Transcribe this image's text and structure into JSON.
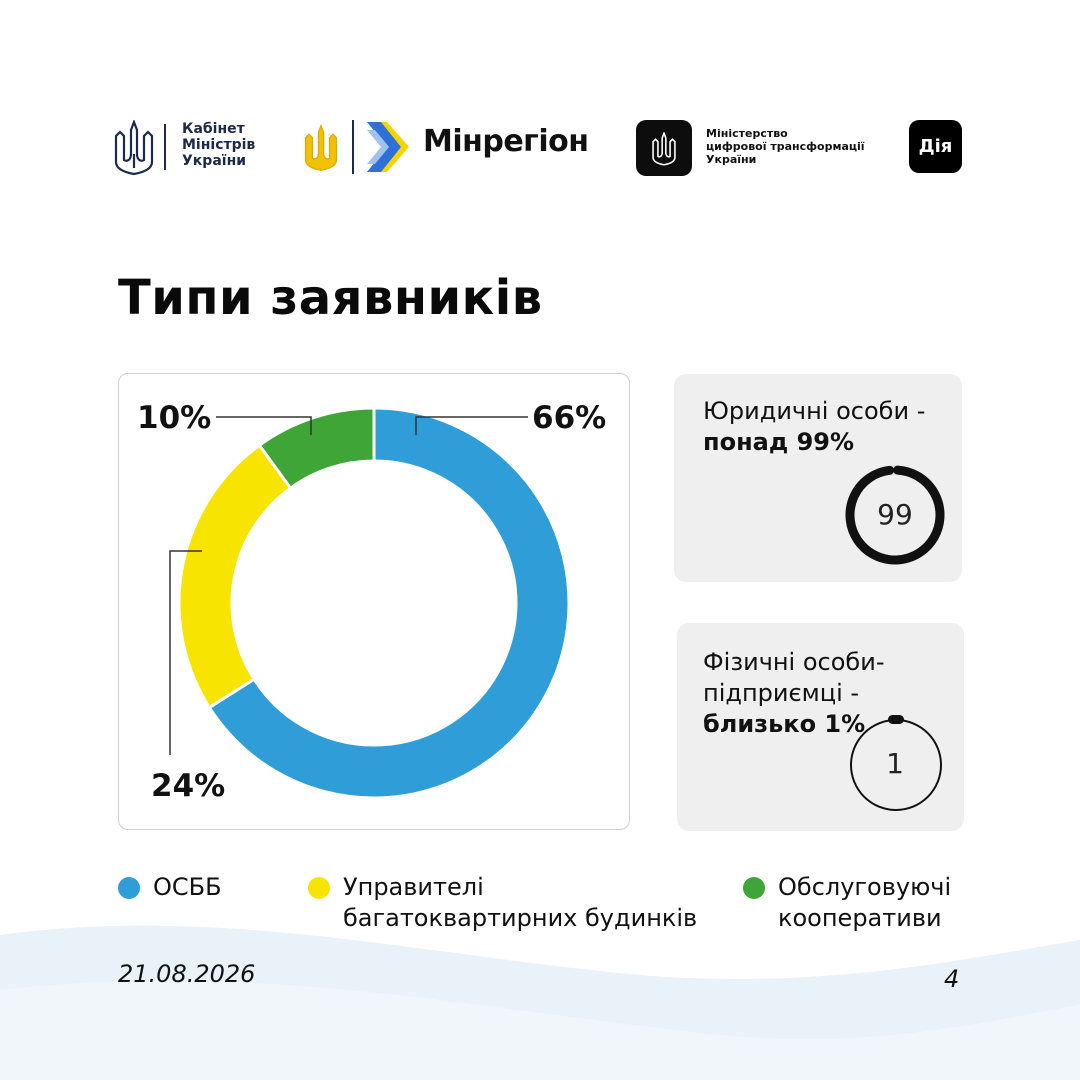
{
  "header": {
    "kmu": {
      "lines": [
        "Кабінет",
        "Міністрів",
        "України"
      ]
    },
    "minregion": {
      "name": "Мінрегіон"
    },
    "mincyfra": {
      "lines": [
        "Міністерство",
        "цифрової трансформації",
        "України"
      ]
    },
    "diia": {
      "label": "Дія"
    }
  },
  "title": "Типи заявників",
  "chart_data": {
    "type": "pie",
    "donut": true,
    "title": "",
    "labels": [
      "ОСББ",
      "Управителі багатоквартирних будинків",
      "Обслуговуючі кооперативи"
    ],
    "values": [
      66,
      24,
      10
    ],
    "value_labels": [
      "66%",
      "24%",
      "10%"
    ],
    "colors": [
      "#2f9ed8",
      "#f7e400",
      "#3ea536"
    ],
    "legend_position": "bottom"
  },
  "legend": [
    {
      "lines": [
        "ОСББ"
      ],
      "color": "#2f9ed8"
    },
    {
      "lines": [
        "Управителі",
        "багатоквартирних будинків"
      ],
      "color": "#f7e400"
    },
    {
      "lines": [
        "Обслуговуючі",
        "кооперативи"
      ],
      "color": "#3ea536"
    }
  ],
  "stats": [
    {
      "lines": [
        "Юридичні особи -"
      ],
      "bold": "понад 99%",
      "gauge_value": "99",
      "gauge_fraction": 0.99
    },
    {
      "lines": [
        "Фізичні особи-",
        "підприємці -"
      ],
      "bold": "близько 1%",
      "gauge_value": "1",
      "gauge_fraction": 0.01
    }
  ],
  "footer": {
    "date": "21.08.2026",
    "page": "4"
  }
}
